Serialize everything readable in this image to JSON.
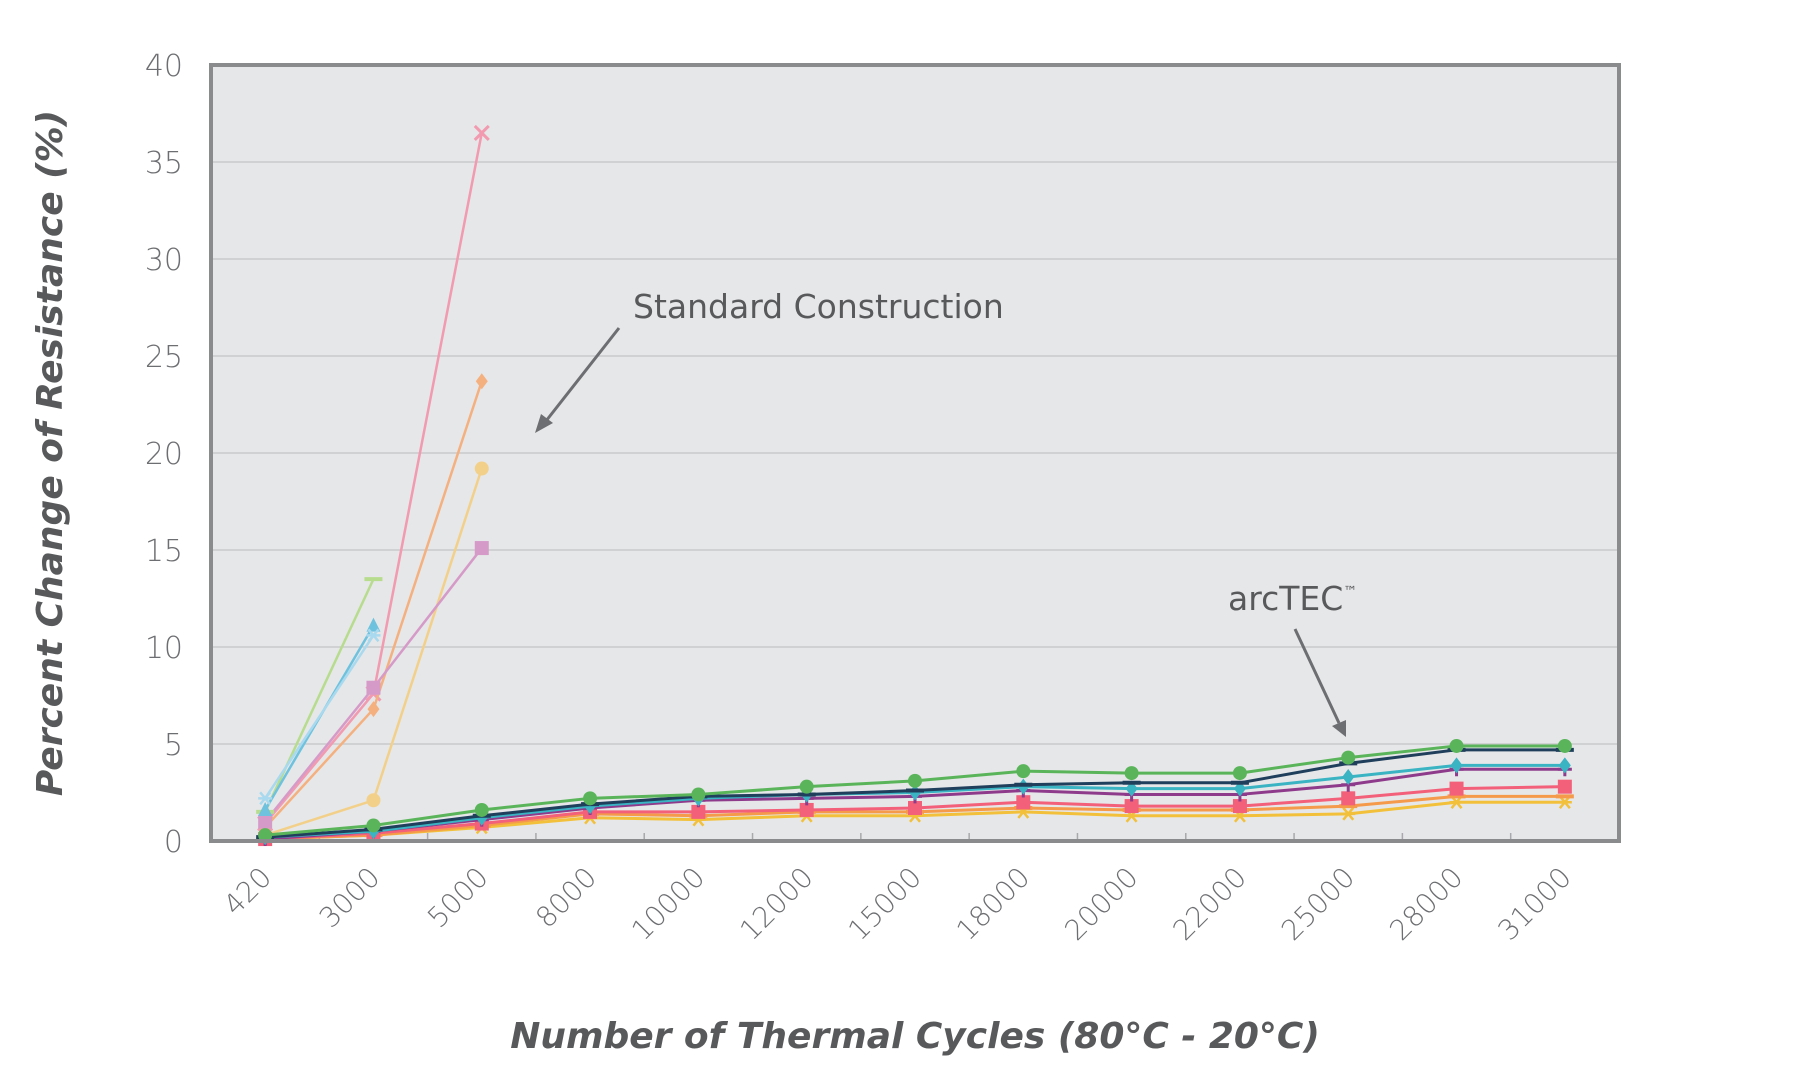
{
  "chart_data": {
    "type": "line",
    "xlabel": "Number of Thermal Cycles (80°C - 20°C)",
    "ylabel": "Percent Change of Resistance (%)",
    "ylim": [
      0,
      40
    ],
    "yticks": [
      "0",
      "5",
      "10",
      "15",
      "20",
      "25",
      "30",
      "35",
      "40"
    ],
    "categories": [
      "420",
      "3000",
      "5000",
      "8000",
      "10000",
      "12000",
      "15000",
      "18000",
      "20000",
      "22000",
      "25000",
      "28000",
      "31000"
    ],
    "grid": "horizontal",
    "annotations": [
      {
        "text": "Standard Construction",
        "points_to": "standard-construction-series"
      },
      {
        "text": "arcTEC",
        "superscript": "™",
        "points_to": "arctec-series"
      }
    ],
    "series": [
      {
        "group": "standard",
        "color": "#f29ab0",
        "marker": "x",
        "values": [
          0.9,
          7.6,
          36.5,
          null,
          null,
          null,
          null,
          null,
          null,
          null,
          null,
          null,
          null
        ]
      },
      {
        "group": "standard",
        "color": "#f5b080",
        "marker": "diamond",
        "values": [
          0.7,
          6.8,
          23.7,
          null,
          null,
          null,
          null,
          null,
          null,
          null,
          null,
          null,
          null
        ]
      },
      {
        "group": "standard",
        "color": "#f3d08a",
        "marker": "circle",
        "values": [
          0.3,
          2.1,
          19.2,
          null,
          null,
          null,
          null,
          null,
          null,
          null,
          null,
          null,
          null
        ]
      },
      {
        "group": "standard",
        "color": "#d69ac9",
        "marker": "square",
        "values": [
          1.0,
          7.9,
          15.1,
          null,
          null,
          null,
          null,
          null,
          null,
          null,
          null,
          null,
          null
        ]
      },
      {
        "group": "standard",
        "color": "#b7dc8e",
        "marker": "dash",
        "values": [
          1.5,
          13.5,
          null,
          null,
          null,
          null,
          null,
          null,
          null,
          null,
          null,
          null,
          null
        ]
      },
      {
        "group": "standard",
        "color": "#6fc2de",
        "marker": "triangle",
        "values": [
          1.6,
          11.1,
          null,
          null,
          null,
          null,
          null,
          null,
          null,
          null,
          null,
          null,
          null
        ]
      },
      {
        "group": "standard",
        "color": "#a9d9ee",
        "marker": "star",
        "values": [
          2.2,
          10.6,
          null,
          null,
          null,
          null,
          null,
          null,
          null,
          null,
          null,
          null,
          null
        ]
      },
      {
        "group": "arctec",
        "color": "#5ab55a",
        "marker": "circle",
        "values": [
          0.3,
          0.8,
          1.6,
          2.2,
          2.4,
          2.8,
          3.1,
          3.6,
          3.5,
          3.5,
          4.3,
          4.9,
          4.9
        ]
      },
      {
        "group": "arctec",
        "color": "#1f3f5c",
        "marker": "dash",
        "values": [
          0.2,
          0.6,
          1.3,
          1.9,
          2.3,
          2.4,
          2.6,
          2.9,
          3.0,
          3.0,
          4.0,
          4.7,
          4.7
        ]
      },
      {
        "group": "arctec",
        "color": "#3ab3c3",
        "marker": "diamond",
        "values": [
          0.2,
          0.5,
          1.2,
          1.8,
          2.2,
          2.4,
          2.5,
          2.8,
          2.7,
          2.7,
          3.3,
          3.9,
          3.9
        ]
      },
      {
        "group": "arctec",
        "color": "#8e3b8c",
        "marker": "plus",
        "values": [
          0.1,
          0.5,
          1.1,
          1.7,
          2.1,
          2.2,
          2.3,
          2.6,
          2.4,
          2.4,
          2.9,
          3.7,
          3.7
        ]
      },
      {
        "group": "arctec",
        "color": "#f2607a",
        "marker": "square",
        "values": [
          0.1,
          0.4,
          0.9,
          1.5,
          1.5,
          1.6,
          1.7,
          2.0,
          1.8,
          1.8,
          2.2,
          2.7,
          2.8
        ]
      },
      {
        "group": "arctec",
        "color": "#f59a4a",
        "marker": "dash",
        "values": [
          0.1,
          0.3,
          0.8,
          1.4,
          1.3,
          1.5,
          1.5,
          1.7,
          1.6,
          1.6,
          1.8,
          2.3,
          2.3
        ]
      },
      {
        "group": "arctec",
        "color": "#f2c03a",
        "marker": "star",
        "values": [
          0.1,
          0.3,
          0.7,
          1.2,
          1.1,
          1.3,
          1.3,
          1.5,
          1.3,
          1.3,
          1.4,
          2.0,
          2.0
        ]
      }
    ]
  }
}
